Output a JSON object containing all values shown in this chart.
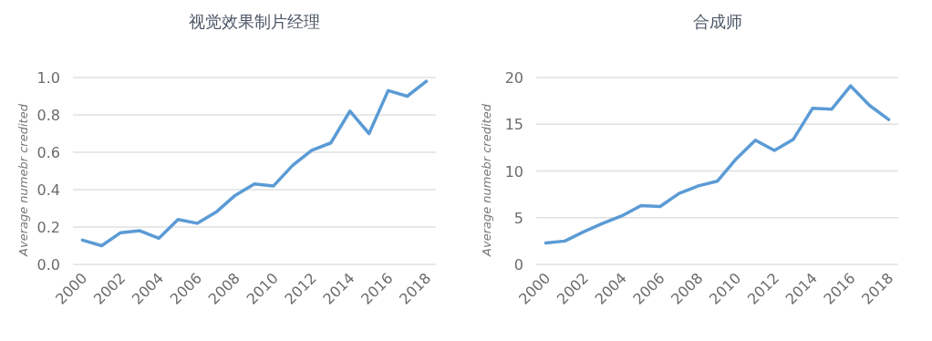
{
  "chart_data": [
    {
      "type": "line",
      "title": "视觉效果制片经理",
      "ylabel": "Average numebr credited",
      "x": [
        2000,
        2001,
        2002,
        2003,
        2004,
        2005,
        2006,
        2007,
        2008,
        2009,
        2010,
        2011,
        2012,
        2013,
        2014,
        2015,
        2016,
        2017,
        2018
      ],
      "series": [
        {
          "color": "#5b9bd5",
          "values": [
            0.13,
            0.1,
            0.17,
            0.18,
            0.14,
            0.24,
            0.22,
            0.28,
            0.37,
            0.43,
            0.42,
            0.53,
            0.61,
            0.65,
            0.82,
            0.7,
            0.93,
            0.9,
            0.98
          ]
        }
      ],
      "xlim": [
        1999.5,
        2018.5
      ],
      "xticks": [
        2000,
        2002,
        2004,
        2006,
        2008,
        2010,
        2012,
        2014,
        2016,
        2018
      ],
      "ylim": [
        0,
        1
      ],
      "yticks": [
        {
          "value": 0,
          "label": "0.0"
        },
        {
          "value": 0.2,
          "label": "0.2"
        },
        {
          "value": 0.4,
          "label": "0.4"
        },
        {
          "value": 0.6,
          "label": "0.6"
        },
        {
          "value": 0.8,
          "label": "0.8"
        },
        {
          "value": 1,
          "label": "1.0"
        }
      ],
      "grid": "y",
      "marker": "none",
      "line_style": "solid"
    },
    {
      "type": "line",
      "title": "合成师",
      "ylabel": "Average numebr credited",
      "x": [
        2000,
        2001,
        2002,
        2003,
        2004,
        2005,
        2006,
        2007,
        2008,
        2009,
        2010,
        2011,
        2012,
        2013,
        2014,
        2015,
        2016,
        2017,
        2018
      ],
      "series": [
        {
          "color": "#5b9bd5",
          "values": [
            2.3,
            2.5,
            3.5,
            4.4,
            5.2,
            6.3,
            6.2,
            7.6,
            8.4,
            8.9,
            11.3,
            13.3,
            12.2,
            13.4,
            16.7,
            16.6,
            19.1,
            17.0,
            15.5
          ]
        }
      ],
      "xlim": [
        1999.5,
        2018.5
      ],
      "xticks": [
        2000,
        2002,
        2004,
        2006,
        2008,
        2010,
        2012,
        2014,
        2016,
        2018
      ],
      "ylim": [
        0,
        20
      ],
      "yticks": [
        0,
        5,
        10,
        15,
        20
      ],
      "grid": "y",
      "marker": "none",
      "line_style": "solid"
    }
  ]
}
